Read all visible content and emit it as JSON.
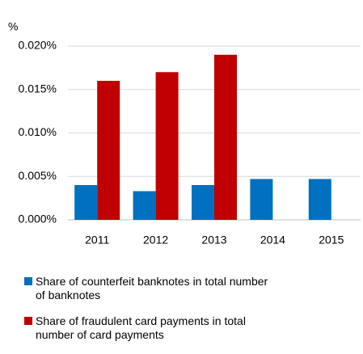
{
  "chart_data": {
    "type": "bar",
    "y_label": "%",
    "categories": [
      "2011",
      "2012",
      "2013",
      "2014",
      "2015"
    ],
    "series": [
      {
        "name": "Share of counterfeit banknotes in total number of banknotes",
        "color": "#0070c0",
        "values": [
          0.004,
          0.0033,
          0.004,
          0.0047,
          0.0047
        ]
      },
      {
        "name": "Share of fraudulent card payments in total number of card payments",
        "color": "#c00000",
        "values": [
          0.016,
          0.017,
          0.019,
          null,
          null
        ]
      }
    ],
    "ylim": [
      0,
      0.02
    ],
    "yticks": [
      {
        "value": 0,
        "label": "0.000%"
      },
      {
        "value": 0.005,
        "label": "0.005%"
      },
      {
        "value": 0.01,
        "label": "0.010%"
      },
      {
        "value": 0.015,
        "label": "0.015%"
      },
      {
        "value": 0.02,
        "label": "0.020%"
      }
    ],
    "grid": true
  }
}
